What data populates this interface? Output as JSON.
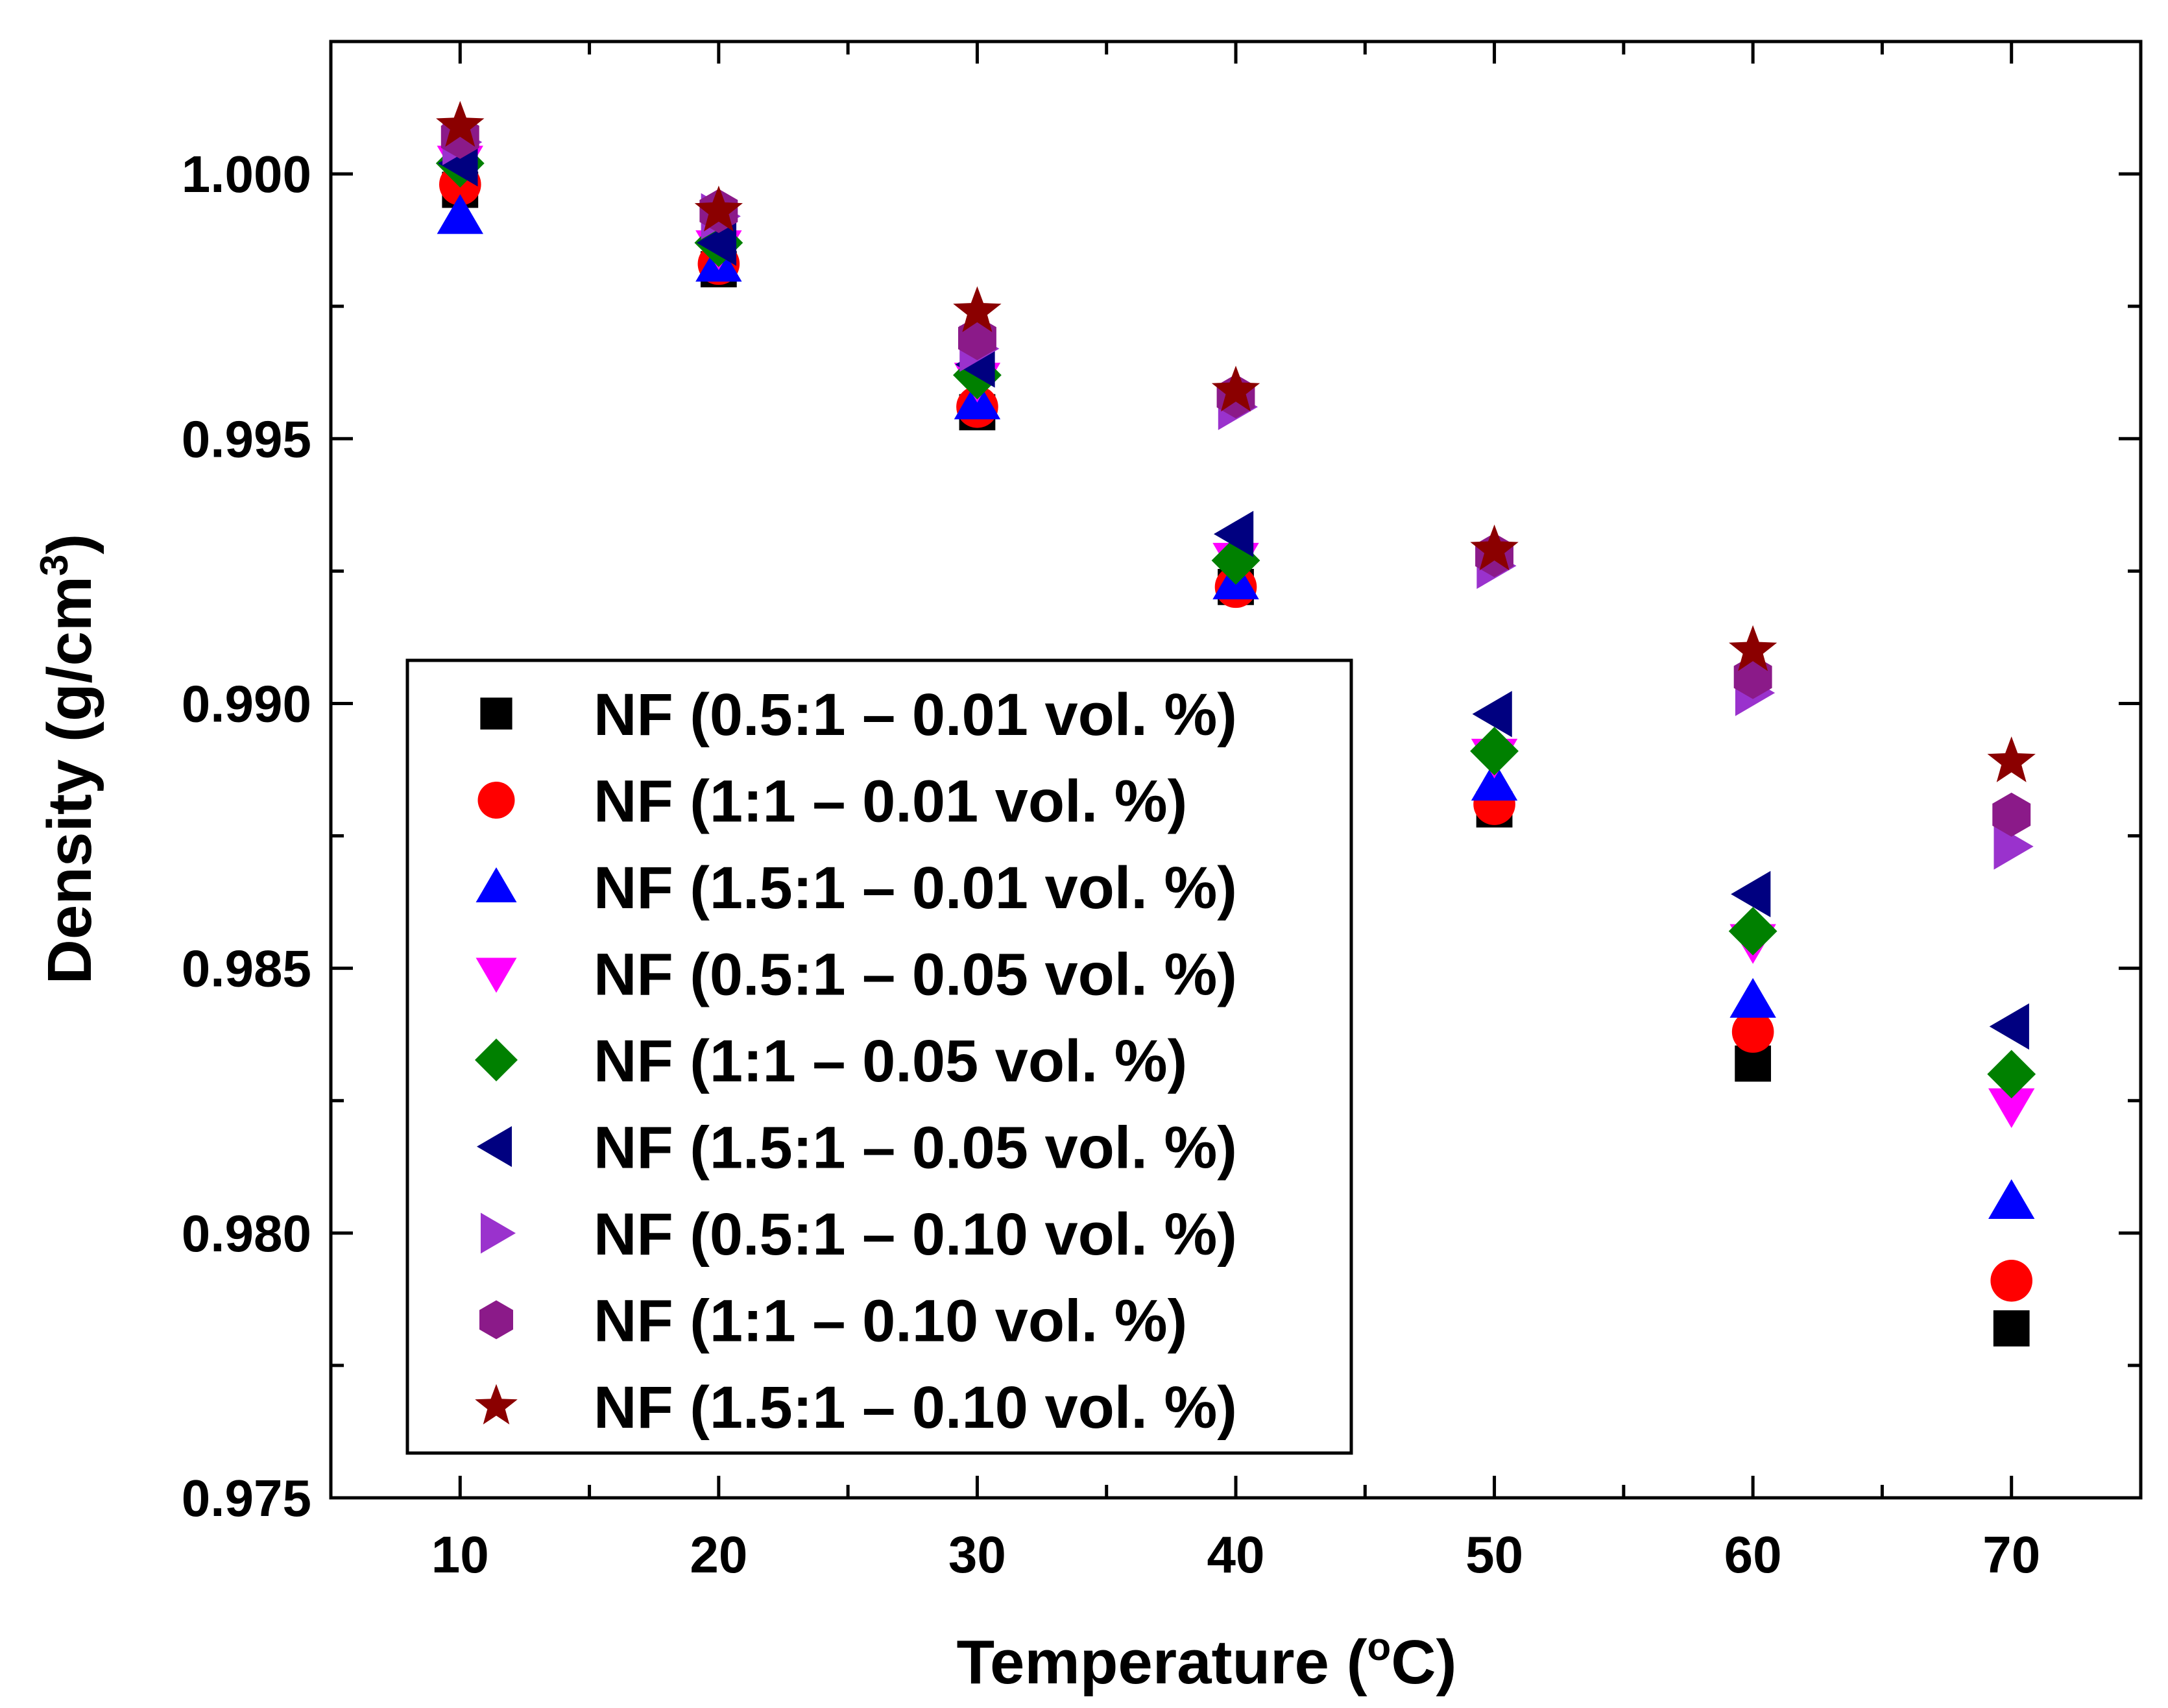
{
  "chart_data": {
    "type": "scatter",
    "title": "",
    "xlabel": "Temperature (",
    "xlabel_sup": "o",
    "xlabel_end": "C)",
    "ylabel": "Density (g/cm",
    "ylabel_sup": "3",
    "ylabel_end": ")",
    "xlim": [
      5,
      75
    ],
    "ylim": [
      0.975,
      1.0025
    ],
    "x_ticks": [
      10,
      20,
      30,
      40,
      50,
      60,
      70
    ],
    "x_tick_labels": [
      "10",
      "20",
      "30",
      "40",
      "50",
      "60",
      "70"
    ],
    "y_ticks": [
      0.975,
      0.98,
      0.985,
      0.99,
      0.995,
      1.0
    ],
    "y_tick_labels": [
      "0.975",
      "0.980",
      "0.985",
      "0.990",
      "0.995",
      "1.000"
    ],
    "legend_position": "lower-left",
    "x": [
      10,
      20,
      30,
      40,
      50,
      60,
      70
    ],
    "series": [
      {
        "name": "NF (0.5:1 – 0.01 vol. %)",
        "label_a": "NF (0.5:1",
        "label_b": "0.01 vol. %)",
        "marker": "square",
        "color": "#000000",
        "values": [
          0.9997,
          0.9982,
          0.9955,
          0.9922,
          0.988,
          0.9832,
          0.9782
        ]
      },
      {
        "name": "NF (1:1 – 0.01 vol. %)",
        "label_a": "NF (1:1",
        "label_b": "0.01 vol. %)",
        "marker": "circle",
        "color": "#ff0000",
        "values": [
          0.9998,
          0.9983,
          0.9956,
          0.9922,
          0.9881,
          0.9838,
          0.9791
        ]
      },
      {
        "name": "NF (1.5:1 – 0.01 vol. %)",
        "label_a": "NF (1.5:1",
        "label_b": "0.01 vol. %)",
        "marker": "triangle-up",
        "color": "#0000ff",
        "values": [
          0.9992,
          0.9983,
          0.9957,
          0.9923,
          0.9885,
          0.9844,
          0.9806
        ]
      },
      {
        "name": "NF (0.5:1 – 0.05 vol. %)",
        "label_a": "NF (0.5:1",
        "label_b": "0.05 vol. %)",
        "marker": "triangle-down",
        "color": "#ff00ff",
        "values": [
          1.0002,
          0.9986,
          0.9961,
          0.9927,
          0.989,
          0.9855,
          0.9824
        ]
      },
      {
        "name": "NF (1:1 – 0.05 vol. %)",
        "label_a": "NF (1:1",
        "label_b": "0.05 vol. %)",
        "marker": "diamond",
        "color": "#008000",
        "values": [
          1.0002,
          0.9987,
          0.9962,
          0.9927,
          0.9891,
          0.9857,
          0.983
        ]
      },
      {
        "name": "NF (1.5:1 – 0.05 vol. %)",
        "label_a": "NF (1.5:1",
        "label_b": "0.05 vol. %)",
        "marker": "triangle-left",
        "color": "#000080",
        "values": [
          1.0002,
          0.9987,
          0.9964,
          0.9932,
          0.9898,
          0.9864,
          0.9839
        ]
      },
      {
        "name": "NF (0.5:1 – 0.10 vol. %)",
        "label_a": "NF (0.5:1",
        "label_b": "0.10 vol. %)",
        "marker": "triangle-right",
        "color": "#9a32cd",
        "values": [
          1.0006,
          0.9992,
          0.9967,
          0.9956,
          0.9926,
          0.9902,
          0.9873
        ]
      },
      {
        "name": "NF (1:1 – 0.10 vol. %)",
        "label_a": "NF (1:1",
        "label_b": "0.10 vol. %)",
        "marker": "hexagon",
        "color": "#8b1a89",
        "values": [
          1.0007,
          0.9993,
          0.9969,
          0.9958,
          0.9928,
          0.9905,
          0.9879
        ]
      },
      {
        "name": "NF (1.5:1 – 0.10 vol. %)",
        "label_a": "NF (1.5:1",
        "label_b": "0.10 vol. %)",
        "marker": "star",
        "color": "#8b0000",
        "values": [
          1.0009,
          0.9993,
          0.9974,
          0.9959,
          0.9929,
          0.991,
          0.9889
        ]
      }
    ]
  }
}
